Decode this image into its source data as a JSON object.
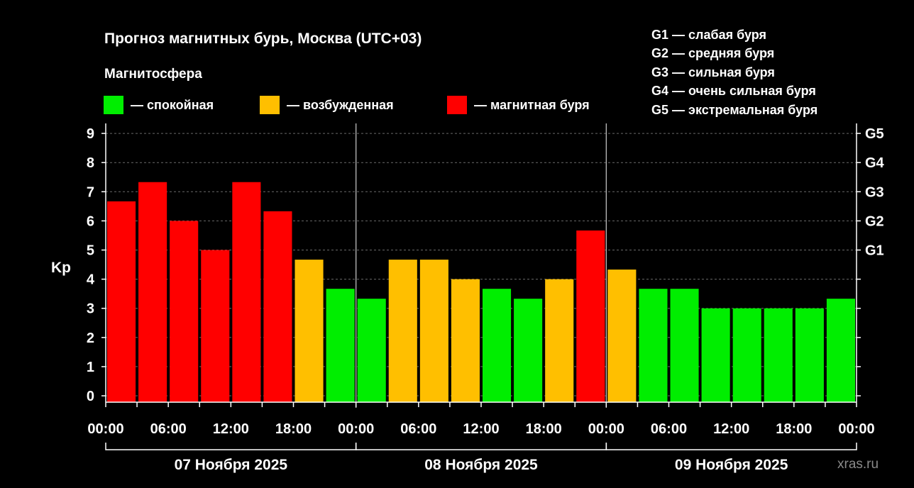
{
  "chart_data": {
    "type": "bar",
    "title": "Прогноз магнитных бурь, Москва (UTC+03)",
    "subtitle": "Магнитосфера",
    "ylabel": "Kp",
    "ylim": [
      0,
      9
    ],
    "yticks": [
      "0",
      "1",
      "2",
      "3",
      "4",
      "5",
      "6",
      "7",
      "8",
      "9"
    ],
    "right_ticks": [
      {
        "kp": 5,
        "label": "G1"
      },
      {
        "kp": 6,
        "label": "G2"
      },
      {
        "kp": 7,
        "label": "G3"
      },
      {
        "kp": 8,
        "label": "G4"
      },
      {
        "kp": 9,
        "label": "G5"
      }
    ],
    "grid": true,
    "legend": [
      {
        "label": "— спокойная",
        "color": "#00ee00"
      },
      {
        "label": "— возбужденная",
        "color": "#ffbf00"
      },
      {
        "label": "— магнитная буря",
        "color": "#ff0000"
      }
    ],
    "storm_levels": [
      "G1 — слабая буря",
      "G2 — средняя буря",
      "G3 — сильная буря",
      "G4 — очень сильная буря",
      "G5 — экстремальная буря"
    ],
    "x_tick_labels": [
      "00:00",
      "06:00",
      "12:00",
      "18:00",
      "00:00",
      "06:00",
      "12:00",
      "18:00",
      "00:00",
      "06:00",
      "12:00",
      "18:00",
      "00:00"
    ],
    "days": [
      "07 Ноября 2025",
      "08 Ноября 2025",
      "09 Ноября 2025"
    ],
    "interval_hours": 3,
    "values": [
      6.67,
      7.33,
      6.0,
      5.0,
      7.33,
      6.33,
      4.67,
      3.67,
      3.33,
      4.67,
      4.67,
      4.0,
      3.67,
      3.33,
      4.0,
      5.67,
      4.33,
      3.67,
      3.67,
      3.0,
      3.0,
      3.0,
      3.0,
      3.33
    ],
    "levels": [
      "storm",
      "storm",
      "storm",
      "storm",
      "storm",
      "storm",
      "active",
      "quiet",
      "quiet",
      "active",
      "active",
      "active",
      "quiet",
      "quiet",
      "active",
      "storm",
      "active",
      "quiet",
      "quiet",
      "quiet",
      "quiet",
      "quiet",
      "quiet",
      "quiet"
    ],
    "colors": {
      "quiet": "#00ee00",
      "active": "#ffbf00",
      "storm": "#ff0000"
    }
  },
  "watermark": "xras.ru"
}
